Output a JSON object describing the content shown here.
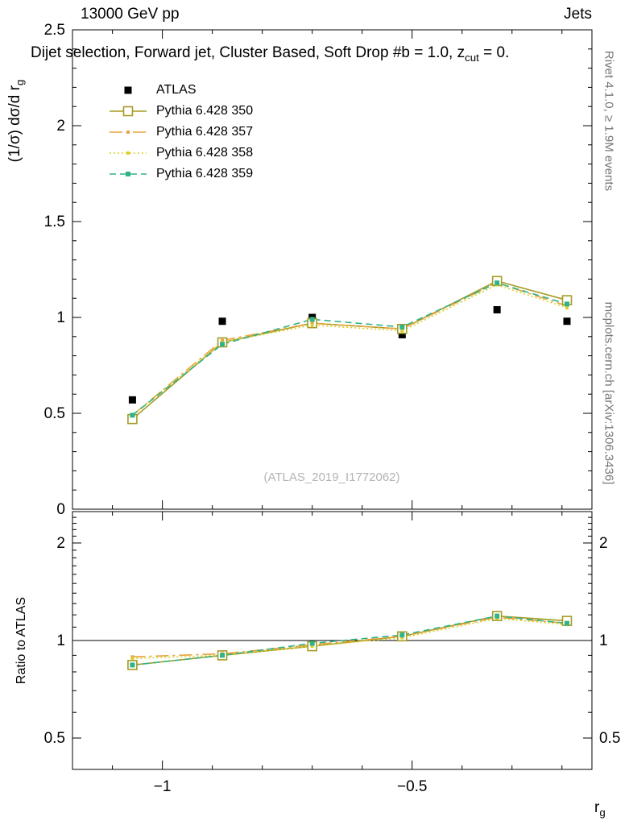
{
  "header": {
    "left": "13000 GeV pp",
    "right": "Jets"
  },
  "side_labels": {
    "right_top": "Rivet 4.1.0, ≥ 1.9M events",
    "right_bottom": "mcplots.cern.ch [arXiv:1306.3436]"
  },
  "watermark": "(ATLAS_2019_I1772062)",
  "chart_data": [
    {
      "type": "line",
      "panel": "main",
      "title": "Dijet selection, Forward jet, Cluster Based, Soft Drop #b = 1.0, z_cut = 0.",
      "title_parts": {
        "main": "Dijet selection, Forward jet, Cluster Based, Soft Drop #b = 1.0, z",
        "sub": "cut",
        "tail": " = 0."
      },
      "ylabel": "(1/σ) dσ/d r_g",
      "ylabel_parts": {
        "pre": "(1/σ) dσ/d r",
        "sub": "g"
      },
      "xlim": [
        -1.18,
        -0.14
      ],
      "ylim": [
        0,
        2.5
      ],
      "yscale": "linear",
      "xticks": [
        -1,
        -0.5
      ],
      "yticks": [
        0,
        0.5,
        1,
        1.5,
        2,
        2.5
      ],
      "show_xtick_labels": false,
      "right_tick_labels": false,
      "legend_position": "top-left",
      "grid": false,
      "x": [
        -1.06,
        -0.88,
        -0.7,
        -0.52,
        -0.33,
        -0.19
      ],
      "series": [
        {
          "name": "ATLAS",
          "color": "#000000",
          "line": "none",
          "marker": "square-filled",
          "marker_size": 9,
          "values": [
            0.57,
            0.98,
            1.0,
            0.91,
            1.04,
            0.98
          ]
        },
        {
          "name": "Pythia 6.428 350",
          "color": "#a69b24",
          "line": "solid",
          "marker": "square-open",
          "marker_size": 11,
          "values": [
            0.47,
            0.87,
            0.97,
            0.94,
            1.19,
            1.09
          ]
        },
        {
          "name": "Pythia 6.428 357",
          "color": "#e8a33c",
          "line": "dashdot",
          "marker": "square-filled",
          "marker_size": 4,
          "values": [
            0.49,
            0.88,
            0.97,
            0.94,
            1.18,
            1.06
          ]
        },
        {
          "name": "Pythia 6.428 358",
          "color": "#d8d02c",
          "line": "dotted",
          "marker": "square-filled",
          "marker_size": 4,
          "values": [
            0.49,
            0.87,
            0.96,
            0.93,
            1.17,
            1.05
          ]
        },
        {
          "name": "Pythia 6.428 359",
          "color": "#2fb487",
          "line": "dashed",
          "marker": "square-filled",
          "marker_size": 6,
          "values": [
            0.49,
            0.86,
            0.99,
            0.95,
            1.18,
            1.07
          ]
        }
      ]
    },
    {
      "type": "line",
      "panel": "ratio",
      "ylabel": "Ratio to ATLAS",
      "xlabel": "r_g",
      "xlabel_parts": {
        "pre": "r",
        "sub": "g"
      },
      "xlim": [
        -1.18,
        -0.14
      ],
      "ylim": [
        0.4,
        2.5
      ],
      "yscale": "log",
      "xticks": [
        -1,
        -0.5
      ],
      "yticks": [
        0.5,
        1,
        2
      ],
      "show_xtick_labels": true,
      "right_tick_labels": true,
      "reference_line": 1,
      "x": [
        -1.06,
        -0.88,
        -0.7,
        -0.52,
        -0.33,
        -0.19
      ],
      "series": [
        {
          "name": "Pythia 6.428 350",
          "color": "#a69b24",
          "line": "solid",
          "marker": "square-open",
          "marker_size": 11,
          "values": [
            0.84,
            0.9,
            0.96,
            1.03,
            1.19,
            1.15
          ]
        },
        {
          "name": "Pythia 6.428 357",
          "color": "#e8a33c",
          "line": "dashdot",
          "marker": "square-filled",
          "marker_size": 4,
          "values": [
            0.89,
            0.91,
            0.97,
            1.03,
            1.18,
            1.13
          ]
        },
        {
          "name": "Pythia 6.428 358",
          "color": "#d8d02c",
          "line": "dotted",
          "marker": "square-filled",
          "marker_size": 4,
          "values": [
            0.88,
            0.9,
            0.96,
            1.02,
            1.17,
            1.12
          ]
        },
        {
          "name": "Pythia 6.428 359",
          "color": "#2fb487",
          "line": "dashed",
          "marker": "square-filled",
          "marker_size": 6,
          "values": [
            0.84,
            0.9,
            0.98,
            1.04,
            1.19,
            1.13
          ]
        }
      ]
    }
  ]
}
